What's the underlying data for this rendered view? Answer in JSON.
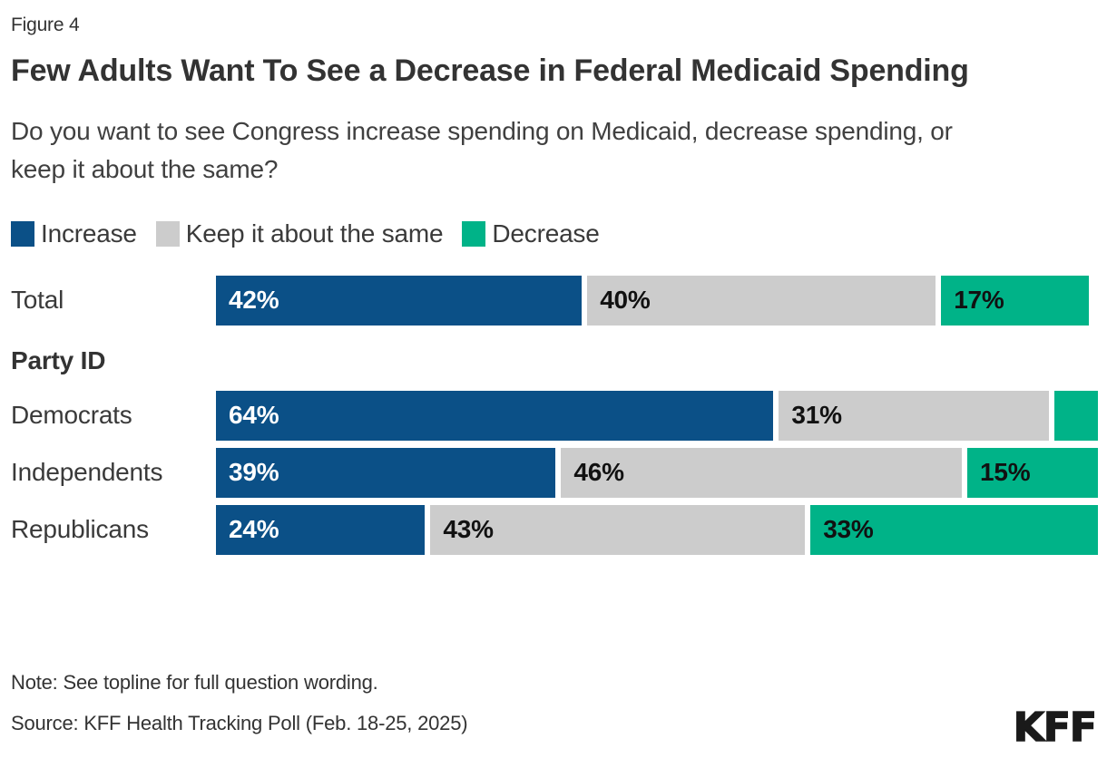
{
  "figure_label": "Figure 4",
  "title": "Few Adults Want To See a Decrease in Federal Medicaid Spending",
  "subtitle": "Do you want to see Congress increase spending on Medicaid, decrease spending, or keep it about the same?",
  "legend": {
    "items": [
      {
        "label": "Increase",
        "color": "#0b5087"
      },
      {
        "label": "Keep it about the same",
        "color": "#cccccc"
      },
      {
        "label": "Decrease",
        "color": "#00b388"
      }
    ]
  },
  "chart_data": {
    "type": "bar",
    "orientation": "horizontal",
    "stacked": true,
    "value_suffix": "%",
    "label_min_value": 10,
    "group_header": "Party ID",
    "series_names": [
      "Increase",
      "Keep it about the same",
      "Decrease"
    ],
    "series_colors": [
      "#0b5087",
      "#cccccc",
      "#00b388"
    ],
    "series_text_colors": [
      "#ffffff",
      "#111111",
      "#111111"
    ],
    "rows": [
      {
        "label": "Total",
        "group": null,
        "values": [
          42,
          40,
          17
        ]
      },
      {
        "label": "Democrats",
        "group": "Party ID",
        "values": [
          64,
          31,
          5
        ]
      },
      {
        "label": "Independents",
        "group": "Party ID",
        "values": [
          39,
          46,
          15
        ]
      },
      {
        "label": "Republicans",
        "group": "Party ID",
        "values": [
          24,
          43,
          33
        ]
      }
    ]
  },
  "note": "Note: See topline for full question wording.",
  "source": "Source: KFF Health Tracking Poll (Feb. 18-25, 2025)",
  "logo_text": "KFF"
}
